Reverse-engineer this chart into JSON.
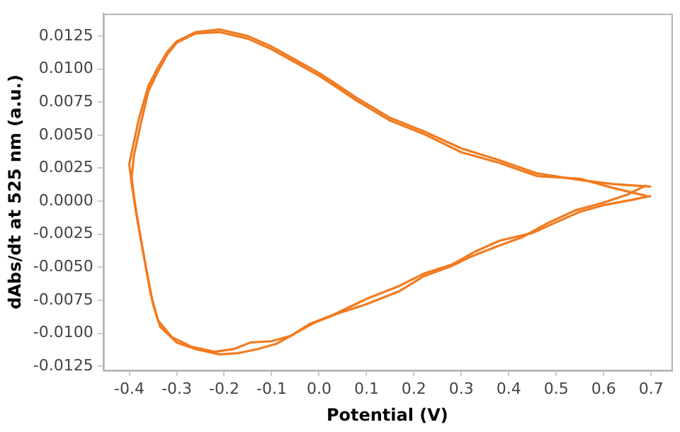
{
  "chart_data": {
    "type": "line",
    "xlabel": "Potential (V)",
    "ylabel": "dAbs/dt at 525 nm (a.u.)",
    "xlim": [
      -0.455,
      0.743
    ],
    "ylim": [
      -0.0128,
      0.0142
    ],
    "xticks": [
      -0.4,
      -0.3,
      -0.2,
      -0.1,
      {
        "value": 0,
        "label": "0.0"
      },
      0.1,
      0.2,
      0.3,
      0.4,
      0.5,
      0.6,
      0.7
    ],
    "yticks": [
      {
        "value": -0.0125,
        "label": "-0.0125"
      },
      {
        "value": -0.01,
        "label": "-0.0100"
      },
      {
        "value": -0.0075,
        "label": "-0.0075"
      },
      {
        "value": -0.005,
        "label": "-0.0050"
      },
      {
        "value": -0.0025,
        "label": "-0.0025"
      },
      {
        "value": 0,
        "label": "0.0000"
      },
      {
        "value": 0.0025,
        "label": "0.0025"
      },
      {
        "value": 0.005,
        "label": "0.0050"
      },
      {
        "value": 0.0075,
        "label": "0.0075"
      },
      {
        "value": 0.01,
        "label": "0.0100"
      },
      {
        "value": 0.0125,
        "label": "0.0125"
      }
    ],
    "grid": false,
    "legend": false,
    "marker": "none",
    "line_style": "solid",
    "series": [
      {
        "color": "#f27a1f",
        "x": [
          0.7,
          0.62,
          0.55,
          0.46,
          0.38,
          0.3,
          0.22,
          0.15,
          0.08,
          0.03,
          0.0,
          -0.05,
          -0.1,
          -0.15,
          -0.21,
          -0.26,
          -0.3,
          -0.32,
          -0.34,
          -0.36,
          -0.38,
          -0.395,
          -0.4,
          -0.395,
          -0.385,
          -0.37,
          -0.355,
          -0.34,
          -0.31,
          -0.27,
          -0.22,
          -0.18,
          -0.145,
          -0.1,
          -0.06,
          -0.02,
          0.03,
          0.1,
          0.17,
          0.22,
          0.28,
          0.33,
          0.38,
          0.45,
          0.5,
          0.55,
          0.6,
          0.66,
          0.7
        ],
        "values": [
          0.0011,
          0.0013,
          0.0016,
          0.0021,
          0.0031,
          0.004,
          0.0053,
          0.0063,
          0.0078,
          0.009,
          0.0097,
          0.0107,
          0.0117,
          0.0125,
          0.013,
          0.0128,
          0.0121,
          0.0113,
          0.0101,
          0.0087,
          0.0062,
          0.0037,
          0.0028,
          0.0013,
          -0.001,
          -0.004,
          -0.007,
          -0.009,
          -0.0103,
          -0.011,
          -0.0114,
          -0.0112,
          -0.0107,
          -0.0106,
          -0.0102,
          -0.0093,
          -0.0086,
          -0.0074,
          -0.0064,
          -0.0055,
          -0.0048,
          -0.0038,
          -0.003,
          -0.0024,
          -0.0016,
          -0.0008,
          -0.0003,
          0.0001,
          0.0004
        ]
      },
      {
        "color": "#f27a1f",
        "x": [
          0.69,
          0.62,
          0.55,
          0.46,
          0.38,
          0.3,
          0.22,
          0.15,
          0.08,
          0.03,
          0.0,
          -0.05,
          -0.1,
          -0.15,
          -0.21,
          -0.26,
          -0.3,
          -0.32,
          -0.34,
          -0.36,
          -0.375,
          -0.39,
          -0.395,
          -0.39,
          -0.38,
          -0.365,
          -0.35,
          -0.335,
          -0.3,
          -0.26,
          -0.21,
          -0.17,
          -0.13,
          -0.09,
          -0.05,
          -0.01,
          0.04,
          0.1,
          0.17,
          0.22,
          0.28,
          0.32,
          0.37,
          0.43,
          0.48,
          0.54,
          0.6,
          0.65,
          0.69
        ],
        "values": [
          0.0004,
          0.001,
          0.0017,
          0.0019,
          0.0029,
          0.0037,
          0.0051,
          0.0061,
          0.0076,
          0.0088,
          0.0095,
          0.0105,
          0.0115,
          0.0123,
          0.0128,
          0.0127,
          0.012,
          0.0111,
          0.0098,
          0.0083,
          0.006,
          0.0035,
          0.0018,
          0.0003,
          -0.002,
          -0.005,
          -0.0078,
          -0.0095,
          -0.0107,
          -0.0112,
          -0.0116,
          -0.0115,
          -0.0112,
          -0.0108,
          -0.01,
          -0.0092,
          -0.0085,
          -0.0078,
          -0.0068,
          -0.0057,
          -0.0049,
          -0.0042,
          -0.0035,
          -0.0027,
          -0.0017,
          -0.0007,
          -0.0001,
          0.0005,
          0.0012
        ]
      }
    ]
  }
}
